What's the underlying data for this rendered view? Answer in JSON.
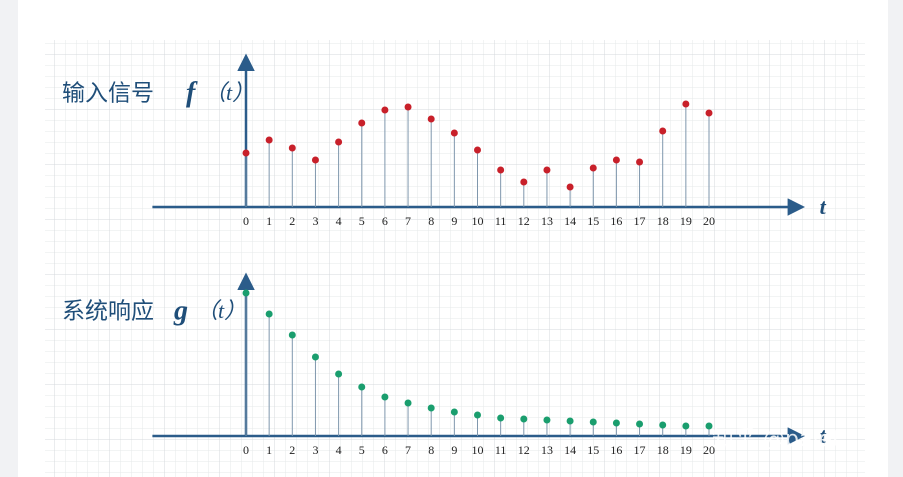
{
  "watermark": "知乎 @palet",
  "chart_data": [
    {
      "type": "stem",
      "title": "输入信号",
      "function": "f",
      "argument": "（t）",
      "x_label": "t",
      "x": [
        0,
        1,
        2,
        3,
        4,
        5,
        6,
        7,
        8,
        9,
        10,
        11,
        12,
        13,
        14,
        15,
        16,
        17,
        18,
        19,
        20
      ],
      "values": [
        5.4,
        6.7,
        5.9,
        4.7,
        6.5,
        8.4,
        9.7,
        10.0,
        8.8,
        7.4,
        5.7,
        3.7,
        2.5,
        3.7,
        2.0,
        3.9,
        4.7,
        4.5,
        7.6,
        10.3,
        9.4
      ],
      "color": "#c8202a",
      "xlim": [
        -4,
        24
      ],
      "ylim": [
        0,
        15
      ]
    },
    {
      "type": "stem",
      "title": "系统响应",
      "function": "g",
      "argument": "（t）",
      "x_label": "t",
      "x": [
        0,
        1,
        2,
        3,
        4,
        5,
        6,
        7,
        8,
        9,
        10,
        11,
        12,
        13,
        14,
        15,
        16,
        17,
        18,
        19,
        20
      ],
      "values": [
        14.3,
        12.2,
        10.1,
        7.9,
        6.2,
        4.9,
        3.9,
        3.3,
        2.8,
        2.4,
        2.1,
        1.8,
        1.7,
        1.6,
        1.5,
        1.4,
        1.3,
        1.2,
        1.1,
        1.0,
        1.0
      ],
      "color": "#1a9e6e",
      "xlim": [
        -4,
        24
      ],
      "ylim": [
        0,
        16
      ]
    }
  ]
}
